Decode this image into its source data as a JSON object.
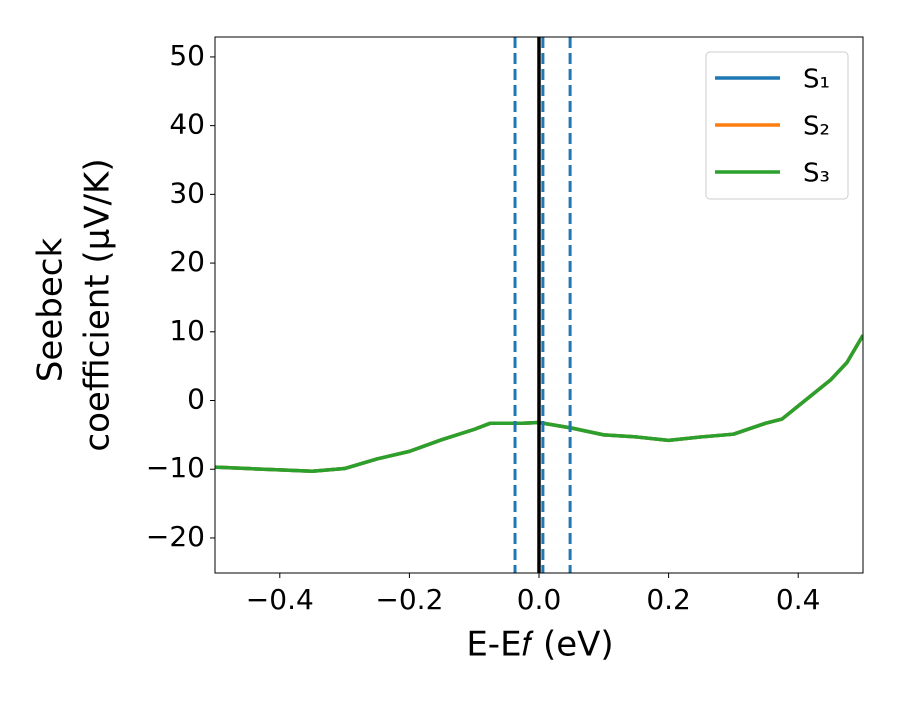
{
  "chart_data": {
    "type": "line",
    "xlabel": "E-E𝑓 (eV)",
    "ylabel": [
      "Seebeck",
      "coefficient  (μV/K)"
    ],
    "x": [
      -0.5,
      -0.45,
      -0.4,
      -0.35,
      -0.3,
      -0.25,
      -0.2,
      -0.15,
      -0.1,
      -0.075,
      -0.05,
      -0.025,
      0,
      0.025,
      0.05,
      0.1,
      0.15,
      0.2,
      0.25,
      0.3,
      0.35,
      0.375,
      0.4,
      0.45,
      0.475,
      0.5
    ],
    "series": [
      {
        "name": "S₁",
        "color": "#1f77b4",
        "values": [
          -9.7,
          -9.9,
          -10.1,
          -10.3,
          -9.9,
          -8.5,
          -7.4,
          -5.7,
          -4.2,
          -3.3,
          -3.3,
          -3.3,
          -3.2,
          -3.6,
          -4.0,
          -5.0,
          -5.3,
          -5.8,
          -5.3,
          -4.9,
          -3.3,
          -2.7,
          -0.8,
          3.0,
          5.5,
          9.5
        ]
      },
      {
        "name": "S₂",
        "color": "#ff7f0e",
        "values": [
          -9.7,
          -9.9,
          -10.1,
          -10.3,
          -9.9,
          -8.5,
          -7.4,
          -5.7,
          -4.2,
          -3.3,
          -3.3,
          -3.3,
          -3.2,
          -3.6,
          -4.0,
          -5.0,
          -5.3,
          -5.8,
          -5.3,
          -4.9,
          -3.3,
          -2.7,
          -0.8,
          3.0,
          5.5,
          9.5
        ]
      },
      {
        "name": "S₃",
        "color": "#2ca02c",
        "values": [
          -9.7,
          -9.9,
          -10.1,
          -10.3,
          -9.9,
          -8.5,
          -7.4,
          -5.7,
          -4.2,
          -3.3,
          -3.3,
          -3.3,
          -3.2,
          -3.6,
          -4.0,
          -5.0,
          -5.3,
          -5.8,
          -5.3,
          -4.9,
          -3.3,
          -2.7,
          -0.8,
          3.0,
          5.5,
          9.5
        ]
      }
    ],
    "vlines": [
      {
        "x": 0,
        "color": "#000000",
        "style": "solid"
      },
      {
        "x": -0.037,
        "color": "#1f77b4",
        "style": "dashed"
      },
      {
        "x": 0.006,
        "color": "#1f77b4",
        "style": "dashed"
      },
      {
        "x": 0.048,
        "color": "#1f77b4",
        "style": "dashed"
      }
    ],
    "xlim": [
      -0.5,
      0.5
    ],
    "ylim": [
      -25.1,
      52.9
    ],
    "xticks": [
      {
        "value": -0.4,
        "label": "−0.4"
      },
      {
        "value": -0.2,
        "label": "−0.2"
      },
      {
        "value": 0,
        "label": "0.0"
      },
      0.2,
      0.4
    ],
    "yticks": [
      {
        "value": -20,
        "label": "−20"
      },
      {
        "value": -10,
        "label": "−10"
      },
      0,
      10,
      20,
      30,
      40,
      50
    ],
    "legend": "upper right"
  }
}
